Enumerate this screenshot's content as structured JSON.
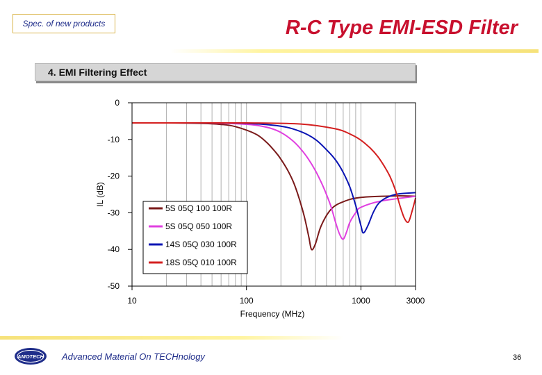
{
  "header": {
    "spec_label": "Spec. of new products",
    "title": "R-C Type EMI-ESD Filter"
  },
  "section": {
    "title": "4. EMI Filtering Effect"
  },
  "chart_data": {
    "type": "line",
    "title": "",
    "xlabel": "Frequency (MHz)",
    "ylabel": "IL (dB)",
    "xscale": "log",
    "xlim": [
      10,
      3000
    ],
    "ylim": [
      -50,
      0
    ],
    "x_ticks": [
      10,
      100,
      1000,
      3000
    ],
    "x_tick_labels": [
      "10",
      "100",
      "1000",
      "3000"
    ],
    "y_ticks": [
      0,
      -10,
      -20,
      -30,
      -40,
      -50
    ],
    "y_tick_labels": [
      "0",
      "-10",
      "-20",
      "-30",
      "-40",
      "-50"
    ],
    "grid": "vertical",
    "legend": "center",
    "series": [
      {
        "name": "5S 05Q 100 100R",
        "color": "#7a1a1a",
        "x": [
          10,
          20,
          40,
          60,
          80,
          120,
          150,
          180,
          200,
          230,
          260,
          290,
          320,
          350,
          370,
          400,
          450,
          550,
          700,
          1000,
          2000,
          3000
        ],
        "y": [
          -5.5,
          -5.5,
          -5.6,
          -5.9,
          -6.5,
          -8.5,
          -10.8,
          -13.5,
          -15.4,
          -18.5,
          -22,
          -26.3,
          -31,
          -36.5,
          -40,
          -38.5,
          -33.5,
          -29,
          -27,
          -25.8,
          -25.4,
          -25.5
        ]
      },
      {
        "name": "5S 05Q 050 100R",
        "color": "#e040e0",
        "x": [
          10,
          40,
          80,
          120,
          160,
          200,
          250,
          300,
          350,
          400,
          450,
          500,
          550,
          600,
          650,
          700,
          750,
          800,
          900,
          1000,
          1500,
          3000
        ],
        "y": [
          -5.5,
          -5.5,
          -5.7,
          -6.1,
          -6.9,
          -8.1,
          -10.2,
          -12.7,
          -15.5,
          -18.5,
          -21.7,
          -25,
          -28.5,
          -32.6,
          -35.8,
          -37.2,
          -35.2,
          -32.6,
          -30,
          -28.5,
          -26.8,
          -25.5
        ]
      },
      {
        "name": "14S 05Q 030 100R",
        "color": "#0a14b4",
        "x": [
          10,
          40,
          100,
          200,
          300,
          400,
          500,
          600,
          700,
          800,
          900,
          1000,
          1050,
          1150,
          1300,
          1500,
          2000,
          3000
        ],
        "y": [
          -5.5,
          -5.5,
          -5.6,
          -6.4,
          -7.9,
          -10,
          -12.8,
          -15.6,
          -19,
          -23,
          -28,
          -33.5,
          -35.5,
          -33.5,
          -29.5,
          -26.8,
          -25,
          -24.5
        ]
      },
      {
        "name": "18S 05Q 010 100R",
        "color": "#d42020",
        "x": [
          10,
          100,
          300,
          600,
          800,
          1000,
          1200,
          1400,
          1600,
          1800,
          2000,
          2200,
          2400,
          2600,
          2800,
          3000
        ],
        "y": [
          -5.5,
          -5.5,
          -5.8,
          -7.1,
          -8.5,
          -10.2,
          -12.3,
          -14.6,
          -17.3,
          -20.2,
          -23.8,
          -28.2,
          -31.5,
          -32.5,
          -29.5,
          -26
        ]
      }
    ]
  },
  "footer": {
    "tagline": "Advanced Material On TECHnology",
    "logo_text": "AMOTECH",
    "page_number": "36"
  }
}
